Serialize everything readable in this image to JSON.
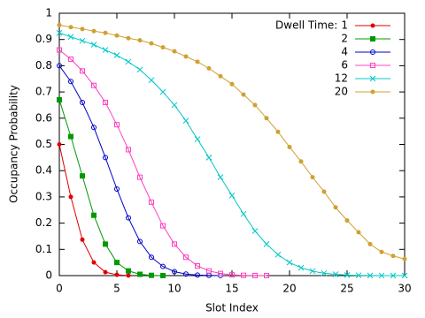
{
  "chart_data": {
    "type": "line",
    "x_label": "Slot Index",
    "y_label": "Occupancy Probability",
    "legend_title": "Dwell Time:",
    "legend": "upper right",
    "xlim": [
      0,
      30
    ],
    "ylim": [
      0,
      1
    ],
    "xticks": [
      0,
      5,
      10,
      15,
      20,
      25,
      30
    ],
    "yticks": [
      0,
      0.1,
      0.2,
      0.3,
      0.4,
      0.5,
      0.6,
      0.7,
      0.8,
      0.9,
      1
    ],
    "series": [
      {
        "name": "1",
        "color": "#e00000",
        "marker": "circle-filled",
        "x": [
          0,
          1,
          2,
          3,
          4,
          5,
          6
        ],
        "values": [
          0.5,
          0.3,
          0.137,
          0.05,
          0.013,
          0.003,
          0.0005
        ]
      },
      {
        "name": "2",
        "color": "#009a00",
        "marker": "square-filled",
        "x": [
          0,
          1,
          2,
          3,
          4,
          5,
          6,
          7,
          8,
          9
        ],
        "values": [
          0.67,
          0.53,
          0.38,
          0.23,
          0.12,
          0.05,
          0.018,
          0.005,
          0.001,
          0.0002
        ]
      },
      {
        "name": "4",
        "color": "#0000c8",
        "marker": "circle-open",
        "x": [
          0,
          1,
          2,
          3,
          4,
          5,
          6,
          7,
          8,
          9,
          10,
          11,
          12,
          13,
          14
        ],
        "values": [
          0.8,
          0.74,
          0.66,
          0.565,
          0.45,
          0.33,
          0.22,
          0.13,
          0.07,
          0.035,
          0.015,
          0.006,
          0.002,
          0.0007,
          0.0002
        ]
      },
      {
        "name": "6",
        "color": "#ff40c0",
        "marker": "square-open",
        "x": [
          0,
          1,
          2,
          3,
          4,
          5,
          6,
          7,
          8,
          9,
          10,
          11,
          12,
          13,
          14,
          15,
          16,
          17,
          18
        ],
        "values": [
          0.86,
          0.825,
          0.78,
          0.725,
          0.66,
          0.575,
          0.48,
          0.375,
          0.28,
          0.19,
          0.12,
          0.07,
          0.037,
          0.018,
          0.008,
          0.003,
          0.001,
          0.0004,
          0.0001
        ]
      },
      {
        "name": "12",
        "color": "#00c8c8",
        "marker": "x",
        "x": [
          0,
          1,
          2,
          3,
          4,
          5,
          6,
          7,
          8,
          9,
          10,
          11,
          12,
          13,
          14,
          15,
          16,
          17,
          18,
          19,
          20,
          21,
          22,
          23,
          24,
          25,
          26,
          27,
          28,
          29,
          30
        ],
        "values": [
          0.925,
          0.91,
          0.895,
          0.88,
          0.86,
          0.84,
          0.815,
          0.785,
          0.745,
          0.7,
          0.65,
          0.59,
          0.52,
          0.45,
          0.375,
          0.305,
          0.235,
          0.17,
          0.12,
          0.08,
          0.05,
          0.03,
          0.017,
          0.009,
          0.005,
          0.002,
          0.001,
          0.0005,
          0.0002,
          0.0001,
          5e-05
        ]
      },
      {
        "name": "20",
        "color": "#d0a030",
        "marker": "circle-filled",
        "x": [
          0,
          1,
          2,
          3,
          4,
          5,
          6,
          7,
          8,
          9,
          10,
          11,
          12,
          13,
          14,
          15,
          16,
          17,
          18,
          19,
          20,
          21,
          22,
          23,
          24,
          25,
          26,
          27,
          28,
          29,
          30
        ],
        "values": [
          0.955,
          0.947,
          0.94,
          0.932,
          0.925,
          0.915,
          0.905,
          0.897,
          0.885,
          0.87,
          0.855,
          0.835,
          0.815,
          0.79,
          0.76,
          0.73,
          0.69,
          0.65,
          0.6,
          0.548,
          0.49,
          0.435,
          0.375,
          0.32,
          0.26,
          0.21,
          0.165,
          0.12,
          0.09,
          0.075,
          0.063
        ]
      }
    ]
  }
}
